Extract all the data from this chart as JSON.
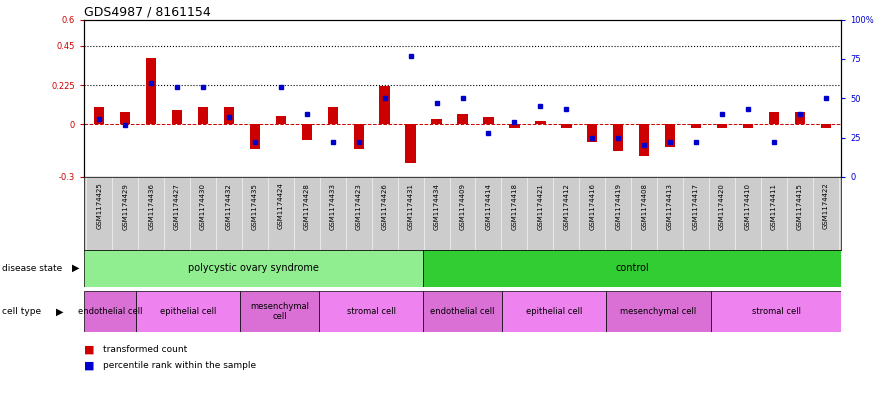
{
  "title": "GDS4987 / 8161154",
  "samples": [
    "GSM1174425",
    "GSM1174429",
    "GSM1174436",
    "GSM1174427",
    "GSM1174430",
    "GSM1174432",
    "GSM1174435",
    "GSM1174424",
    "GSM1174428",
    "GSM1174433",
    "GSM1174423",
    "GSM1174426",
    "GSM1174431",
    "GSM1174434",
    "GSM1174409",
    "GSM1174414",
    "GSM1174418",
    "GSM1174421",
    "GSM1174412",
    "GSM1174416",
    "GSM1174419",
    "GSM1174408",
    "GSM1174413",
    "GSM1174417",
    "GSM1174420",
    "GSM1174410",
    "GSM1174411",
    "GSM1174415",
    "GSM1174422"
  ],
  "red_values": [
    0.1,
    0.07,
    0.38,
    0.08,
    0.1,
    0.1,
    -0.14,
    0.05,
    -0.09,
    0.1,
    -0.14,
    0.22,
    -0.22,
    0.03,
    0.06,
    0.04,
    -0.02,
    0.02,
    -0.02,
    -0.1,
    -0.15,
    -0.18,
    -0.13,
    -0.02,
    -0.02,
    -0.02,
    0.07,
    0.07,
    -0.02
  ],
  "blue_values_pct": [
    37,
    33,
    60,
    57,
    57,
    38,
    22,
    57,
    40,
    22,
    22,
    50,
    77,
    47,
    50,
    28,
    35,
    45,
    43,
    25,
    25,
    20,
    22,
    22,
    40,
    43,
    22,
    40,
    50
  ],
  "ylim_left": [
    -0.3,
    0.6
  ],
  "ylim_right": [
    0,
    100
  ],
  "yticks_left": [
    -0.3,
    0.0,
    0.225,
    0.45,
    0.6
  ],
  "ytick_labels_left": [
    "-0.3",
    "0",
    "0.225",
    "0.45",
    "0.6"
  ],
  "yticks_right": [
    0,
    25,
    50,
    75,
    100
  ],
  "ytick_labels_right": [
    "0",
    "25",
    "50",
    "75",
    "100%"
  ],
  "hlines": [
    0.225,
    0.45
  ],
  "disease_state_groups": [
    {
      "label": "polycystic ovary syndrome",
      "start": 0,
      "end": 13,
      "color": "#90EE90"
    },
    {
      "label": "control",
      "start": 13,
      "end": 29,
      "color": "#32CD32"
    }
  ],
  "cell_type_groups": [
    {
      "label": "endothelial cell",
      "start": 0,
      "end": 2,
      "color": "#DA70D6"
    },
    {
      "label": "epithelial cell",
      "start": 2,
      "end": 6,
      "color": "#EE82EE"
    },
    {
      "label": "mesenchymal\ncell",
      "start": 6,
      "end": 9,
      "color": "#DA70D6"
    },
    {
      "label": "stromal cell",
      "start": 9,
      "end": 13,
      "color": "#EE82EE"
    },
    {
      "label": "endothelial cell",
      "start": 13,
      "end": 16,
      "color": "#DA70D6"
    },
    {
      "label": "epithelial cell",
      "start": 16,
      "end": 20,
      "color": "#EE82EE"
    },
    {
      "label": "mesenchymal cell",
      "start": 20,
      "end": 24,
      "color": "#DA70D6"
    },
    {
      "label": "stromal cell",
      "start": 24,
      "end": 29,
      "color": "#EE82EE"
    }
  ],
  "bar_width": 0.4,
  "red_color": "#CC0000",
  "blue_color": "#0000CC",
  "zero_line_color": "#CC0000",
  "bg_color": "#FFFFFF",
  "tick_bg_color": "#CCCCCC",
  "legend_red_label": "transformed count",
  "legend_blue_label": "percentile rank within the sample",
  "title_fontsize": 9,
  "tick_fontsize": 6,
  "sample_fontsize": 5
}
